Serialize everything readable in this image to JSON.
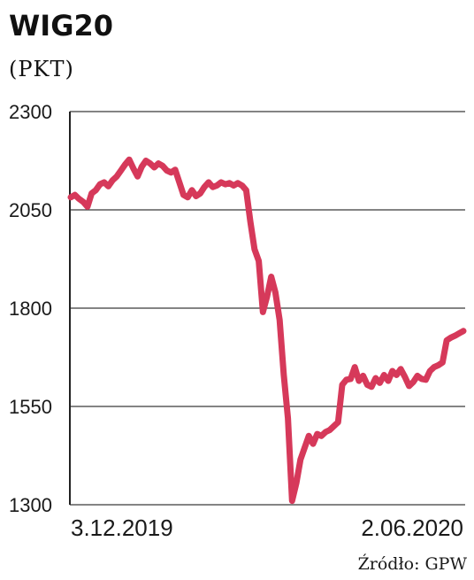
{
  "chart_data": {
    "type": "line",
    "title": "WIG20",
    "subtitle": "(PKT)",
    "source": "Źródło: GPW",
    "x_labels": [
      "3.12.2019",
      "2.06.2020"
    ],
    "y_ticks": [
      2300,
      2050,
      1800,
      1550,
      1300
    ],
    "ylim": [
      1300,
      2300
    ],
    "grid": true,
    "line_color": "#d6395a",
    "series": [
      {
        "values": [
          2082,
          2088,
          2078,
          2070,
          2058,
          2092,
          2100,
          2115,
          2120,
          2110,
          2125,
          2135,
          2150,
          2165,
          2178,
          2155,
          2135,
          2160,
          2175,
          2168,
          2158,
          2168,
          2162,
          2150,
          2145,
          2152,
          2120,
          2088,
          2082,
          2100,
          2085,
          2092,
          2108,
          2120,
          2108,
          2112,
          2120,
          2115,
          2118,
          2112,
          2118,
          2112,
          2100,
          2020,
          1950,
          1920,
          1790,
          1830,
          1880,
          1840,
          1770,
          1630,
          1520,
          1310,
          1355,
          1415,
          1445,
          1475,
          1455,
          1480,
          1475,
          1485,
          1490,
          1500,
          1510,
          1605,
          1618,
          1620,
          1650,
          1615,
          1628,
          1605,
          1600,
          1622,
          1610,
          1630,
          1615,
          1640,
          1630,
          1645,
          1625,
          1602,
          1612,
          1628,
          1620,
          1618,
          1640,
          1650,
          1655,
          1662,
          1718,
          1725,
          1730,
          1736,
          1742
        ]
      }
    ]
  }
}
